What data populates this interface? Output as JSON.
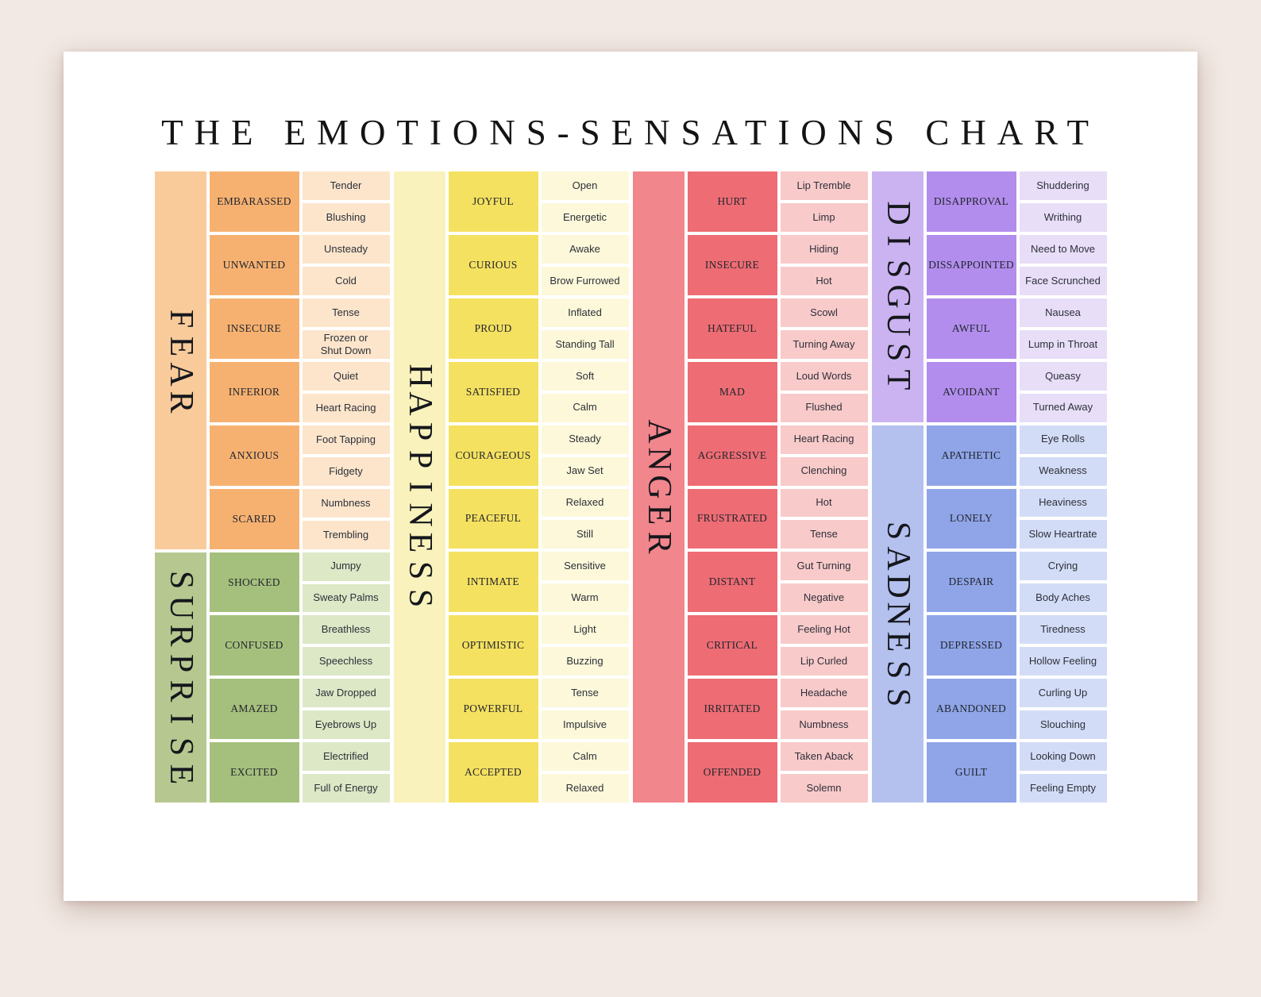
{
  "title": "THE EMOTIONS-SENSATIONS CHART",
  "colors": {
    "page_background": "#f2e9e4",
    "card_background": "#ffffff",
    "text": "#1c1f26"
  },
  "chart_data": {
    "type": "table",
    "title": "THE EMOTIONS-SENSATIONS CHART",
    "groups": [
      {
        "sections": [
          {
            "category": "FEAR",
            "colors": {
              "label": "#f9cb9b",
              "emotion": "#f6b171",
              "sensation": "#fce5cb"
            },
            "rows": [
              {
                "emotion": "EMBARASSED",
                "sensations": [
                  "Tender",
                  "Blushing"
                ]
              },
              {
                "emotion": "UNWANTED",
                "sensations": [
                  "Unsteady",
                  "Cold"
                ]
              },
              {
                "emotion": "INSECURE",
                "sensations": [
                  "Tense",
                  "Frozen or\nShut Down"
                ]
              },
              {
                "emotion": "INFERIOR",
                "sensations": [
                  "Quiet",
                  "Heart Racing"
                ]
              },
              {
                "emotion": "ANXIOUS",
                "sensations": [
                  "Foot Tapping",
                  "Fidgety"
                ]
              },
              {
                "emotion": "SCARED",
                "sensations": [
                  "Numbness",
                  "Trembling"
                ]
              }
            ]
          },
          {
            "category": "SURPRISE",
            "colors": {
              "label": "#b6c890",
              "emotion": "#a5c07c",
              "sensation": "#dce8c6"
            },
            "rows": [
              {
                "emotion": "SHOCKED",
                "sensations": [
                  "Jumpy",
                  "Sweaty Palms"
                ]
              },
              {
                "emotion": "CONFUSED",
                "sensations": [
                  "Breathless",
                  "Speechless"
                ]
              },
              {
                "emotion": "AMAZED",
                "sensations": [
                  "Jaw Dropped",
                  "Eyebrows Up"
                ]
              },
              {
                "emotion": "EXCITED",
                "sensations": [
                  "Electrified",
                  "Full of Energy"
                ]
              }
            ]
          }
        ]
      },
      {
        "sections": [
          {
            "category": "HAPPINESS",
            "colors": {
              "label": "#f9f2bc",
              "emotion": "#f5e160",
              "sensation": "#fcf8d9"
            },
            "rows": [
              {
                "emotion": "JOYFUL",
                "sensations": [
                  "Open",
                  "Energetic"
                ]
              },
              {
                "emotion": "CURIOUS",
                "sensations": [
                  "Awake",
                  "Brow Furrowed"
                ]
              },
              {
                "emotion": "PROUD",
                "sensations": [
                  "Inflated",
                  "Standing Tall"
                ]
              },
              {
                "emotion": "SATISFIED",
                "sensations": [
                  "Soft",
                  "Calm"
                ]
              },
              {
                "emotion": "COURAGEOUS",
                "sensations": [
                  "Steady",
                  "Jaw Set"
                ]
              },
              {
                "emotion": "PEACEFUL",
                "sensations": [
                  "Relaxed",
                  "Still"
                ]
              },
              {
                "emotion": "INTIMATE",
                "sensations": [
                  "Sensitive",
                  "Warm"
                ]
              },
              {
                "emotion": "OPTIMISTIC",
                "sensations": [
                  "Light",
                  "Buzzing"
                ]
              },
              {
                "emotion": "POWERFUL",
                "sensations": [
                  "Tense",
                  "Impulsive"
                ]
              },
              {
                "emotion": "ACCEPTED",
                "sensations": [
                  "Calm",
                  "Relaxed"
                ]
              }
            ]
          }
        ]
      },
      {
        "sections": [
          {
            "category": "ANGER",
            "colors": {
              "label": "#f2868d",
              "emotion": "#ee6c74",
              "sensation": "#f9caca"
            },
            "rows": [
              {
                "emotion": "HURT",
                "sensations": [
                  "Lip Tremble",
                  "Limp"
                ]
              },
              {
                "emotion": "INSECURE",
                "sensations": [
                  "Hiding",
                  "Hot"
                ]
              },
              {
                "emotion": "HATEFUL",
                "sensations": [
                  "Scowl",
                  "Turning Away"
                ]
              },
              {
                "emotion": "MAD",
                "sensations": [
                  "Loud Words",
                  "Flushed"
                ]
              },
              {
                "emotion": "AGGRESSIVE",
                "sensations": [
                  "Heart Racing",
                  "Clenching"
                ]
              },
              {
                "emotion": "FRUSTRATED",
                "sensations": [
                  "Hot",
                  "Tense"
                ]
              },
              {
                "emotion": "DISTANT",
                "sensations": [
                  "Gut Turning",
                  "Negative"
                ]
              },
              {
                "emotion": "CRITICAL",
                "sensations": [
                  "Feeling Hot",
                  "Lip Curled"
                ]
              },
              {
                "emotion": "IRRITATED",
                "sensations": [
                  "Headache",
                  "Numbness"
                ]
              },
              {
                "emotion": "OFFENDED",
                "sensations": [
                  "Taken Aback",
                  "Solemn"
                ]
              }
            ]
          }
        ]
      },
      {
        "sections": [
          {
            "category": "DISGUST",
            "colors": {
              "label": "#cbb3f1",
              "emotion": "#b28ded",
              "sensation": "#e8def8"
            },
            "rows": [
              {
                "emotion": "DISAPPROVAL",
                "sensations": [
                  "Shuddering",
                  "Writhing"
                ]
              },
              {
                "emotion": "DISSAPPOINTED",
                "sensations": [
                  "Need to Move",
                  "Face Scrunched"
                ]
              },
              {
                "emotion": "AWFUL",
                "sensations": [
                  "Nausea",
                  "Lump in Throat"
                ]
              },
              {
                "emotion": "AVOIDANT",
                "sensations": [
                  "Queasy",
                  "Turned Away"
                ]
              }
            ]
          },
          {
            "category": "SADNESS",
            "colors": {
              "label": "#b4c1ef",
              "emotion": "#8fa5e8",
              "sensation": "#d3dcf7"
            },
            "rows": [
              {
                "emotion": "APATHETIC",
                "sensations": [
                  "Eye Rolls",
                  "Weakness"
                ]
              },
              {
                "emotion": "LONELY",
                "sensations": [
                  "Heaviness",
                  "Slow Heartrate"
                ]
              },
              {
                "emotion": "DESPAIR",
                "sensations": [
                  "Crying",
                  "Body Aches"
                ]
              },
              {
                "emotion": "DEPRESSED",
                "sensations": [
                  "Tiredness",
                  "Hollow Feeling"
                ]
              },
              {
                "emotion": "ABANDONED",
                "sensations": [
                  "Curling Up",
                  "Slouching"
                ]
              },
              {
                "emotion": "GUILT",
                "sensations": [
                  "Looking Down",
                  "Feeling Empty"
                ]
              }
            ]
          }
        ]
      }
    ]
  }
}
